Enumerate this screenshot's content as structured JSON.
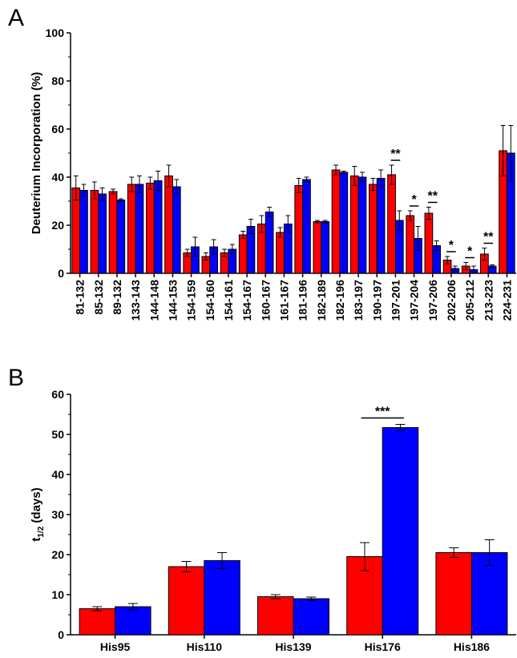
{
  "panels": {
    "a_letter": "A",
    "b_letter": "B"
  },
  "colors": {
    "series1": "#ff0000",
    "series2": "#0000ff",
    "outline": "#000000"
  },
  "chart_data": [
    {
      "type": "bar",
      "panel": "A",
      "ylabel": "Deuterium Incorporation (%)",
      "xlabel": "",
      "ylim": [
        0,
        100
      ],
      "yticks": [
        0,
        20,
        40,
        60,
        80,
        100
      ],
      "categories": [
        "81-132",
        "85-132",
        "89-132",
        "133-143",
        "144-148",
        "144-153",
        "154-159",
        "154-160",
        "154-161",
        "154-167",
        "160-167",
        "161-167",
        "181-196",
        "182-189",
        "182-196",
        "183-197",
        "190-197",
        "197-201",
        "197-204",
        "197-206",
        "202-206",
        "205-212",
        "213-223",
        "224-231"
      ],
      "series": [
        {
          "values": [
            35.5,
            34.5,
            34,
            37,
            37.5,
            40.5,
            8.5,
            7,
            8.5,
            16,
            20.5,
            17,
            36.5,
            21.5,
            43,
            40.5,
            37,
            41,
            24,
            25,
            5.5,
            3,
            8,
            51
          ],
          "errors": [
            5,
            3.5,
            1,
            3,
            2.5,
            4.5,
            1.5,
            1.5,
            1.5,
            1.5,
            3.5,
            2,
            3,
            0.5,
            2,
            4,
            2.5,
            4,
            2,
            2.5,
            1.5,
            1.5,
            2.5,
            10.5
          ]
        },
        {
          "values": [
            34.5,
            33,
            30.5,
            37,
            38.5,
            36,
            11,
            11,
            10,
            19.5,
            25.5,
            20.5,
            39,
            21.5,
            42,
            40,
            39.5,
            22,
            14.5,
            11.5,
            2,
            1.5,
            3,
            50
          ],
          "errors": [
            2.5,
            2.5,
            0.5,
            3.5,
            4,
            3,
            4,
            3,
            2,
            3,
            2,
            3.5,
            1,
            0.5,
            0.5,
            2,
            3.5,
            4,
            5,
            2,
            1,
            1.5,
            0.5,
            11.5
          ]
        }
      ],
      "significance": [
        {
          "category": "197-201",
          "label": "**"
        },
        {
          "category": "197-204",
          "label": "*"
        },
        {
          "category": "197-206",
          "label": "**"
        },
        {
          "category": "202-206",
          "label": "*"
        },
        {
          "category": "205-212",
          "label": "*"
        },
        {
          "category": "213-223",
          "label": "**"
        }
      ]
    },
    {
      "type": "bar",
      "panel": "B",
      "ylabel": "t1/2 (days)",
      "ylabel_main": "t",
      "ylabel_sub": "1/2",
      "ylabel_rest": " (days)",
      "xlabel": "",
      "ylim": [
        0,
        60
      ],
      "yticks": [
        0,
        10,
        20,
        30,
        40,
        50,
        60
      ],
      "categories": [
        "His95",
        "His110",
        "His139",
        "His176",
        "His186"
      ],
      "series": [
        {
          "values": [
            6.5,
            17,
            9.5,
            19.5,
            20.5
          ],
          "errors": [
            0.5,
            1.3,
            0.5,
            3.5,
            1.2
          ]
        },
        {
          "values": [
            7,
            18.5,
            9,
            51.7,
            20.5
          ],
          "errors": [
            0.8,
            2,
            0.4,
            0.8,
            3.2
          ]
        }
      ],
      "significance": [
        {
          "category": "His176",
          "label": "***"
        }
      ]
    }
  ]
}
